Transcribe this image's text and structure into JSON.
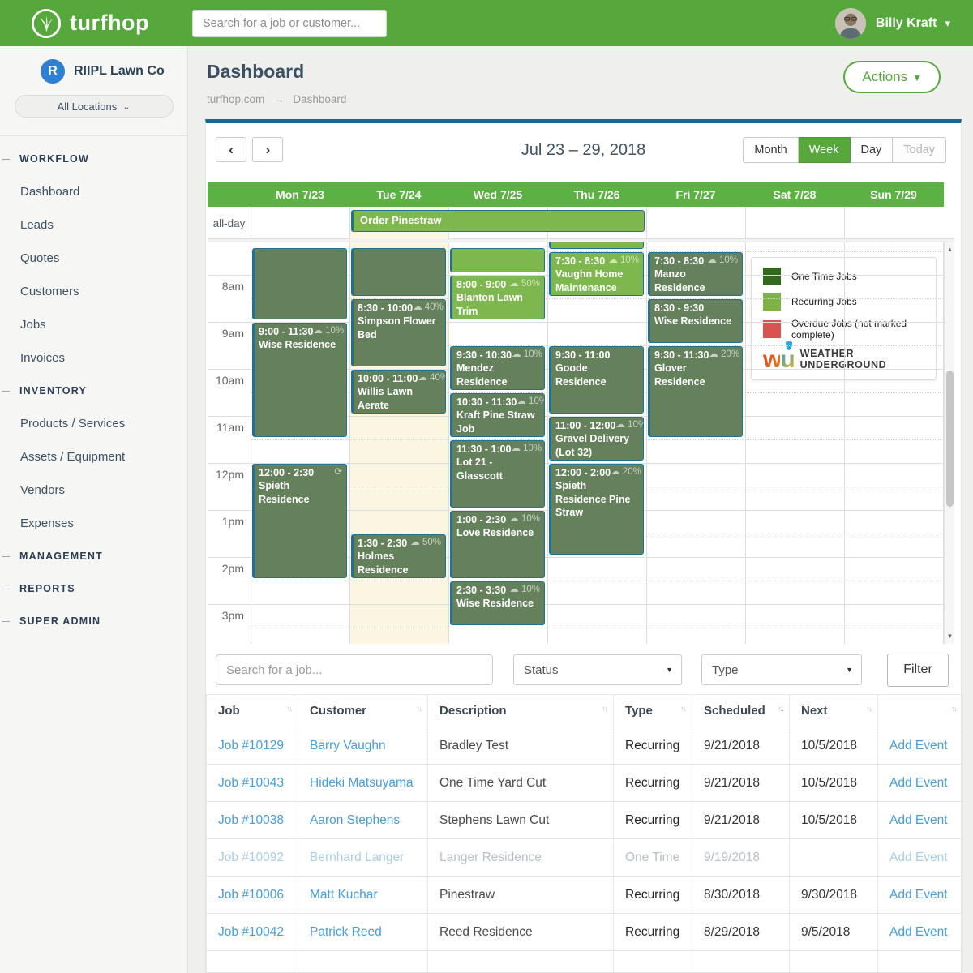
{
  "topbar": {
    "brand": "turfhop",
    "search_placeholder": "Search for a job or customer...",
    "user_name": "Billy Kraft"
  },
  "sidebar": {
    "company_initial": "R",
    "company_name": "RIIPL Lawn Co",
    "location_filter": "All Locations",
    "sections": [
      {
        "label": "WORKFLOW",
        "items": [
          "Dashboard",
          "Leads",
          "Quotes",
          "Customers",
          "Jobs",
          "Invoices"
        ]
      },
      {
        "label": "INVENTORY",
        "items": [
          "Products / Services",
          "Assets / Equipment",
          "Vendors",
          "Expenses"
        ]
      },
      {
        "label": "MANAGEMENT",
        "items": []
      },
      {
        "label": "REPORTS",
        "items": []
      },
      {
        "label": "SUPER ADMIN",
        "items": []
      }
    ]
  },
  "page": {
    "title": "Dashboard",
    "breadcrumb": {
      "root": "turfhop.com",
      "current": "Dashboard"
    },
    "actions_label": "Actions"
  },
  "calendar": {
    "title": "Jul 23 – 29, 2018",
    "views": [
      "Month",
      "Week",
      "Day",
      "Today"
    ],
    "active_view": "Week",
    "disabled_view": "Today",
    "days": [
      "Mon 7/23",
      "Tue 7/24",
      "Wed 7/25",
      "Thu 7/26",
      "Fri 7/27",
      "Sat 7/28",
      "Sun 7/29"
    ],
    "today_index": 1,
    "allday_label": "all-day",
    "allday_event": {
      "title": "Order Pinestraw",
      "day_start": 1,
      "day_span": 3
    },
    "time_labels": [
      "8am",
      "9am",
      "10am",
      "11am",
      "12pm",
      "1pm",
      "2pm",
      "3pm"
    ],
    "events": [
      {
        "day": 0,
        "start": 445,
        "end": 540,
        "time": "",
        "title": "",
        "variant": "dark"
      },
      {
        "day": 0,
        "start": 540,
        "end": 690,
        "time": "9:00 - 11:30",
        "title": "Wise Residence",
        "weather": "10%",
        "variant": "dark"
      },
      {
        "day": 0,
        "start": 720,
        "end": 870,
        "time": "12:00 - 2:30",
        "title": "Spieth Residence",
        "icon": "⟳",
        "variant": "dark"
      },
      {
        "day": 1,
        "start": 445,
        "end": 510,
        "time": "",
        "title": "",
        "variant": "dark"
      },
      {
        "day": 1,
        "start": 510,
        "end": 600,
        "time": "8:30 - 10:00",
        "title": "Simpson Flower Bed",
        "weather": "40%",
        "variant": "dark"
      },
      {
        "day": 1,
        "start": 600,
        "end": 660,
        "time": "10:00 - 11:00",
        "title": "Willis Lawn Aerate",
        "weather": "40%",
        "variant": "dark"
      },
      {
        "day": 1,
        "start": 810,
        "end": 870,
        "time": "1:30 - 2:30",
        "title": "Holmes Residence",
        "weather": "50%",
        "variant": "dark"
      },
      {
        "day": 2,
        "start": 445,
        "end": 480,
        "time": "",
        "title": "",
        "variant": "light"
      },
      {
        "day": 2,
        "start": 480,
        "end": 540,
        "time": "8:00 - 9:00",
        "title": "Blanton Lawn Trim",
        "weather": "50%",
        "variant": "light"
      },
      {
        "day": 2,
        "start": 570,
        "end": 630,
        "time": "9:30 - 10:30",
        "title": "Mendez Residence",
        "weather": "10%",
        "variant": "dark"
      },
      {
        "day": 2,
        "start": 630,
        "end": 690,
        "time": "10:30 - 11:30",
        "title": "Kraft Pine Straw Job",
        "weather": "10%",
        "variant": "dark"
      },
      {
        "day": 2,
        "start": 690,
        "end": 780,
        "time": "11:30 - 1:00",
        "title": "Lot 21 - Glasscott",
        "weather": "10%",
        "variant": "dark"
      },
      {
        "day": 2,
        "start": 780,
        "end": 870,
        "time": "1:00 - 2:30",
        "title": "Love Residence",
        "weather": "10%",
        "variant": "dark"
      },
      {
        "day": 2,
        "start": 870,
        "end": 930,
        "time": "2:30 - 3:30",
        "title": "Wise Residence",
        "weather": "10%",
        "variant": "dark"
      },
      {
        "day": 3,
        "start": 420,
        "end": 450,
        "time": "",
        "title": "",
        "variant": "light"
      },
      {
        "day": 3,
        "start": 450,
        "end": 510,
        "time": "7:30 - 8:30",
        "title": "Vaughn Home Maintenance",
        "weather": "10%",
        "variant": "light"
      },
      {
        "day": 3,
        "start": 570,
        "end": 660,
        "time": "9:30 - 11:00",
        "title": "Goode Residence",
        "variant": "dark"
      },
      {
        "day": 3,
        "start": 660,
        "end": 720,
        "time": "11:00 - 12:00",
        "title": "Gravel Delivery (Lot 32)",
        "weather": "10%",
        "variant": "dark"
      },
      {
        "day": 3,
        "start": 720,
        "end": 840,
        "time": "12:00 - 2:00",
        "title": "Spieth Residence Pine Straw",
        "weather": "20%",
        "variant": "dark"
      },
      {
        "day": 4,
        "start": 450,
        "end": 510,
        "time": "7:30 - 8:30",
        "title": "Manzo Residence",
        "weather": "10%",
        "variant": "dark"
      },
      {
        "day": 4,
        "start": 510,
        "end": 570,
        "time": "8:30 - 9:30",
        "title": "Wise Residence",
        "variant": "dark"
      },
      {
        "day": 4,
        "start": 570,
        "end": 690,
        "time": "9:30 - 11:30",
        "title": "Glover Residence",
        "weather": "20%",
        "variant": "dark"
      }
    ],
    "legend": {
      "items": [
        {
          "label": "One Time Jobs",
          "color": "#33691e"
        },
        {
          "label": "Recurring Jobs",
          "color": "#7cb342"
        },
        {
          "label": "Overdue Jobs (not marked complete)",
          "color": "#d9534f"
        }
      ],
      "brand_mark": "wu",
      "brand_line1": "WEATHER",
      "brand_line2": "UNDERGROUND"
    }
  },
  "filters": {
    "search_placeholder": "Search for a job...",
    "status_label": "Status",
    "type_label": "Type",
    "filter_label": "Filter"
  },
  "jobs_table": {
    "columns": [
      "Job",
      "Customer",
      "Description",
      "Type",
      "Scheduled",
      "Next",
      ""
    ],
    "sorted_column": "Scheduled",
    "sort_direction": "desc",
    "action_label": "Add Event",
    "rows": [
      {
        "job": "Job #10129",
        "customer": "Barry Vaughn",
        "description": "Bradley Test",
        "type": "Recurring",
        "scheduled": "9/21/2018",
        "next": "10/5/2018",
        "faded": false
      },
      {
        "job": "Job #10043",
        "customer": "Hideki Matsuyama",
        "description": "One Time Yard Cut",
        "type": "Recurring",
        "scheduled": "9/21/2018",
        "next": "10/5/2018",
        "faded": false
      },
      {
        "job": "Job #10038",
        "customer": "Aaron Stephens",
        "description": "Stephens Lawn Cut",
        "type": "Recurring",
        "scheduled": "9/21/2018",
        "next": "10/5/2018",
        "faded": false
      },
      {
        "job": "Job #10092",
        "customer": "Bernhard Langer",
        "description": "Langer Residence",
        "type": "One Time",
        "scheduled": "9/19/2018",
        "next": "",
        "faded": true
      },
      {
        "job": "Job #10006",
        "customer": "Matt Kuchar",
        "description": "Pinestraw",
        "type": "Recurring",
        "scheduled": "8/30/2018",
        "next": "9/30/2018",
        "faded": false
      },
      {
        "job": "Job #10042",
        "customer": "Patrick Reed",
        "description": "Reed Residence",
        "type": "Recurring",
        "scheduled": "8/29/2018",
        "next": "9/5/2018",
        "faded": false
      }
    ]
  },
  "colors": {
    "brand_green": "#56a83c",
    "day_header_green": "#5cb143",
    "card_top_teal": "#176a8c",
    "event_border_teal": "#1d7295",
    "event_dark": "#65815c",
    "event_light": "#7eb74e",
    "today_cream": "#faf6e2",
    "link_blue": "#459ddb",
    "company_badge_blue": "#2f80d2",
    "weather_cloud": "☁"
  }
}
